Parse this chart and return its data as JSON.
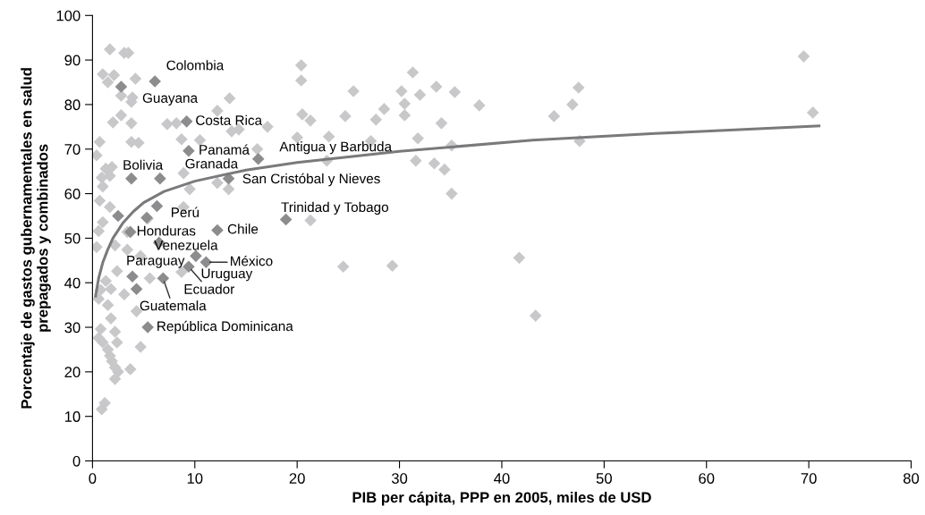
{
  "chart_data": {
    "type": "scatter",
    "xlabel": "PIB per cápita, PPP en 2005, miles de USD",
    "ylabel": "Porcentaje de gastos gubernamentales en salud\nprepagados y combinados",
    "xlim": [
      0,
      80
    ],
    "ylim": [
      0,
      100
    ],
    "xticks": [
      0,
      10,
      20,
      30,
      40,
      50,
      60,
      70,
      80
    ],
    "yticks": [
      0,
      10,
      20,
      30,
      40,
      50,
      60,
      70,
      80,
      90,
      100
    ],
    "grid": false,
    "marker": "diamond",
    "series": [
      {
        "color": "#c8c8ca",
        "x": [
          69.5,
          70.4,
          47.5,
          46.9,
          45.1,
          47.6,
          41.7,
          43.3,
          20.4,
          20.4,
          31.3,
          30.2,
          33.6,
          35.4,
          37.8,
          25.5,
          32.0,
          30.5,
          30.5,
          28.5,
          27.7,
          20.5,
          21.3,
          24.7,
          34.1,
          20.0,
          23.1,
          27.2,
          31.8,
          35.1,
          31.6,
          33.4,
          34.4,
          35.1,
          22.9,
          21.3,
          24.5,
          29.3,
          17.1,
          1.7,
          3.1,
          3.5,
          1.0,
          2.1,
          1.5,
          4.2,
          2.8,
          3.9,
          3.8,
          13.4,
          12.2,
          2.8,
          2.0,
          3.8,
          7.3,
          8.2,
          14.3,
          13.6,
          0.7,
          3.8,
          4.5,
          8.7,
          10.5,
          0.4,
          16.1,
          1.3,
          1.9,
          0.9,
          1.7,
          8.9,
          12.2,
          13.3,
          1.0,
          9.5,
          0.7,
          1.7,
          1.0,
          5.4,
          8.9,
          0.6,
          3.4,
          0.4,
          2.2,
          3.4,
          4.7,
          2.4,
          1.3,
          1.8,
          0.8,
          3.1,
          5.6,
          8.7,
          0.6,
          1.5,
          4.3,
          1.8,
          0.8,
          2.2,
          0.6,
          1.0,
          2.4,
          4.7,
          1.5,
          1.7,
          1.9,
          2.2,
          2.5,
          3.7,
          2.2,
          1.2,
          0.9
        ],
        "values": [
          90.8,
          78.2,
          83.8,
          80.0,
          77.4,
          71.8,
          45.6,
          32.6,
          88.8,
          85.4,
          87.2,
          83.0,
          84.0,
          82.8,
          79.8,
          83.0,
          82.2,
          80.2,
          77.6,
          79.0,
          76.6,
          77.8,
          76.4,
          77.4,
          75.8,
          72.6,
          72.8,
          71.8,
          72.4,
          70.8,
          67.4,
          66.8,
          65.4,
          60.0,
          67.4,
          54.0,
          43.6,
          43.8,
          75.0,
          92.4,
          91.6,
          91.6,
          86.8,
          86.6,
          85.0,
          85.8,
          82.0,
          81.6,
          80.6,
          81.4,
          78.6,
          77.6,
          76.0,
          75.8,
          75.6,
          75.8,
          74.4,
          74.0,
          71.6,
          71.6,
          71.4,
          72.2,
          72.0,
          68.6,
          70.0,
          65.6,
          66.0,
          63.6,
          64.0,
          64.6,
          62.4,
          61.0,
          61.6,
          61.0,
          58.4,
          57.0,
          53.6,
          54.4,
          57.0,
          51.6,
          51.4,
          48.0,
          48.4,
          47.4,
          46.0,
          42.6,
          40.4,
          38.6,
          38.4,
          37.4,
          41.0,
          42.4,
          36.4,
          35.0,
          33.6,
          32.0,
          29.6,
          29.0,
          27.6,
          26.6,
          26.6,
          25.6,
          25.0,
          23.6,
          22.4,
          21.0,
          20.0,
          20.6,
          18.4,
          13.0,
          11.6
        ]
      },
      {
        "color": "#8c8c8e",
        "x": [
          6.1,
          2.8,
          9.2,
          9.4,
          6.6,
          3.8,
          13.3,
          16.2,
          18.9,
          12.2,
          6.3,
          5.3,
          2.5,
          3.7,
          6.5,
          3.9,
          4.3,
          6.9,
          5.4,
          9.4,
          10.1,
          11.1
        ],
        "values": [
          85.2,
          84.0,
          76.2,
          69.6,
          63.4,
          63.4,
          63.4,
          67.8,
          54.2,
          51.8,
          57.2,
          54.6,
          55.0,
          51.4,
          49.0,
          41.4,
          38.6,
          41.0,
          30.0,
          43.6,
          46.0,
          44.6
        ]
      },
      {
        "type": "line",
        "marker": "none",
        "color": "#7a7a7c",
        "x": [
          0.3,
          0.6,
          1,
          1.5,
          2,
          3,
          4,
          5,
          7,
          10,
          15,
          20,
          30,
          43,
          55,
          71
        ],
        "values": [
          37,
          41,
          44.5,
          47.5,
          50,
          53.5,
          56,
          58,
          60.5,
          62.8,
          65.3,
          67,
          69.5,
          72,
          73.5,
          75.2
        ]
      }
    ],
    "annotations": [
      {
        "text": "Colombia",
        "x": 6.1,
        "y": 85.2
      },
      {
        "text": "Guayana",
        "x": 2.8,
        "y": 84.0
      },
      {
        "text": "Costa Rica",
        "x": 9.2,
        "y": 76.2
      },
      {
        "text": "Panamá",
        "x": 9.4,
        "y": 69.6
      },
      {
        "text": "Granada",
        "x": 6.6,
        "y": 63.4
      },
      {
        "text": "Bolivia",
        "x": 3.8,
        "y": 63.4
      },
      {
        "text": "San Cristóbal y Nieves",
        "x": 13.3,
        "y": 63.4
      },
      {
        "text": "Antigua y Barbuda",
        "x": 16.2,
        "y": 67.8
      },
      {
        "text": "Trinidad y Tobago",
        "x": 18.9,
        "y": 54.2
      },
      {
        "text": "Chile",
        "x": 12.2,
        "y": 51.8
      },
      {
        "text": "Perú",
        "x": 6.3,
        "y": 57.2
      },
      {
        "text": "Honduras",
        "x": 3.7,
        "y": 51.4
      },
      {
        "text": "Venezuela",
        "x": 6.5,
        "y": 49.0
      },
      {
        "text": "Paraguay",
        "x": 3.9,
        "y": 41.4
      },
      {
        "text": "México",
        "x": 11.1,
        "y": 44.6
      },
      {
        "text": "Uruguay",
        "x": 10.1,
        "y": 46.0
      },
      {
        "text": "Ecuador",
        "x": 9.4,
        "y": 43.6
      },
      {
        "text": "Guatemala",
        "x": 6.9,
        "y": 41.0
      },
      {
        "text": "República Dominicana",
        "x": 5.4,
        "y": 30.0
      }
    ]
  }
}
